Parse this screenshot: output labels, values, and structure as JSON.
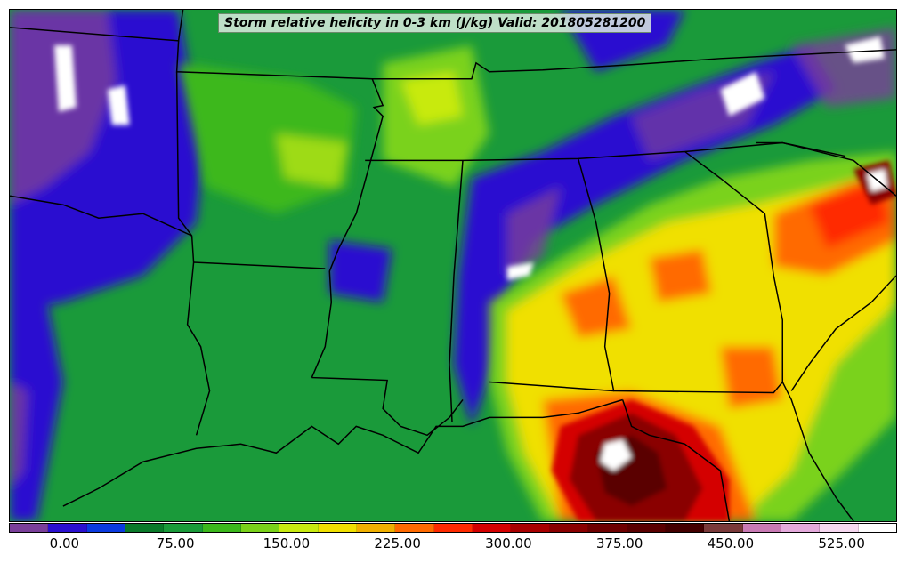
{
  "title": "Storm relative helicity in 0-3 km (J/kg) Valid: 201805281200",
  "colorbar": {
    "colors": [
      "#7a3f9a",
      "#2a10d0",
      "#0a3ae0",
      "#0a7a2a",
      "#1a9a3a",
      "#3cb81c",
      "#7ad21a",
      "#c8ea10",
      "#f0e000",
      "#f0b000",
      "#ff6a00",
      "#ff2a00",
      "#d40000",
      "#a80000",
      "#8a0000",
      "#6e0000",
      "#5a0000",
      "#440000",
      "#7a3a3a",
      "#c87ab4",
      "#e4aadc",
      "#f6d8f0",
      "#ffffff"
    ],
    "tick_labels": [
      "0.00",
      "75.00",
      "150.00",
      "225.00",
      "300.00",
      "375.00",
      "450.00",
      "525.00"
    ],
    "tick_values": [
      0,
      75,
      150,
      225,
      300,
      375,
      450,
      525
    ],
    "range": [
      -37.5,
      562.5
    ]
  },
  "map": {
    "region": "Southeastern United States",
    "boundary_color": "#000000",
    "water_color": "#1a9a3a"
  }
}
